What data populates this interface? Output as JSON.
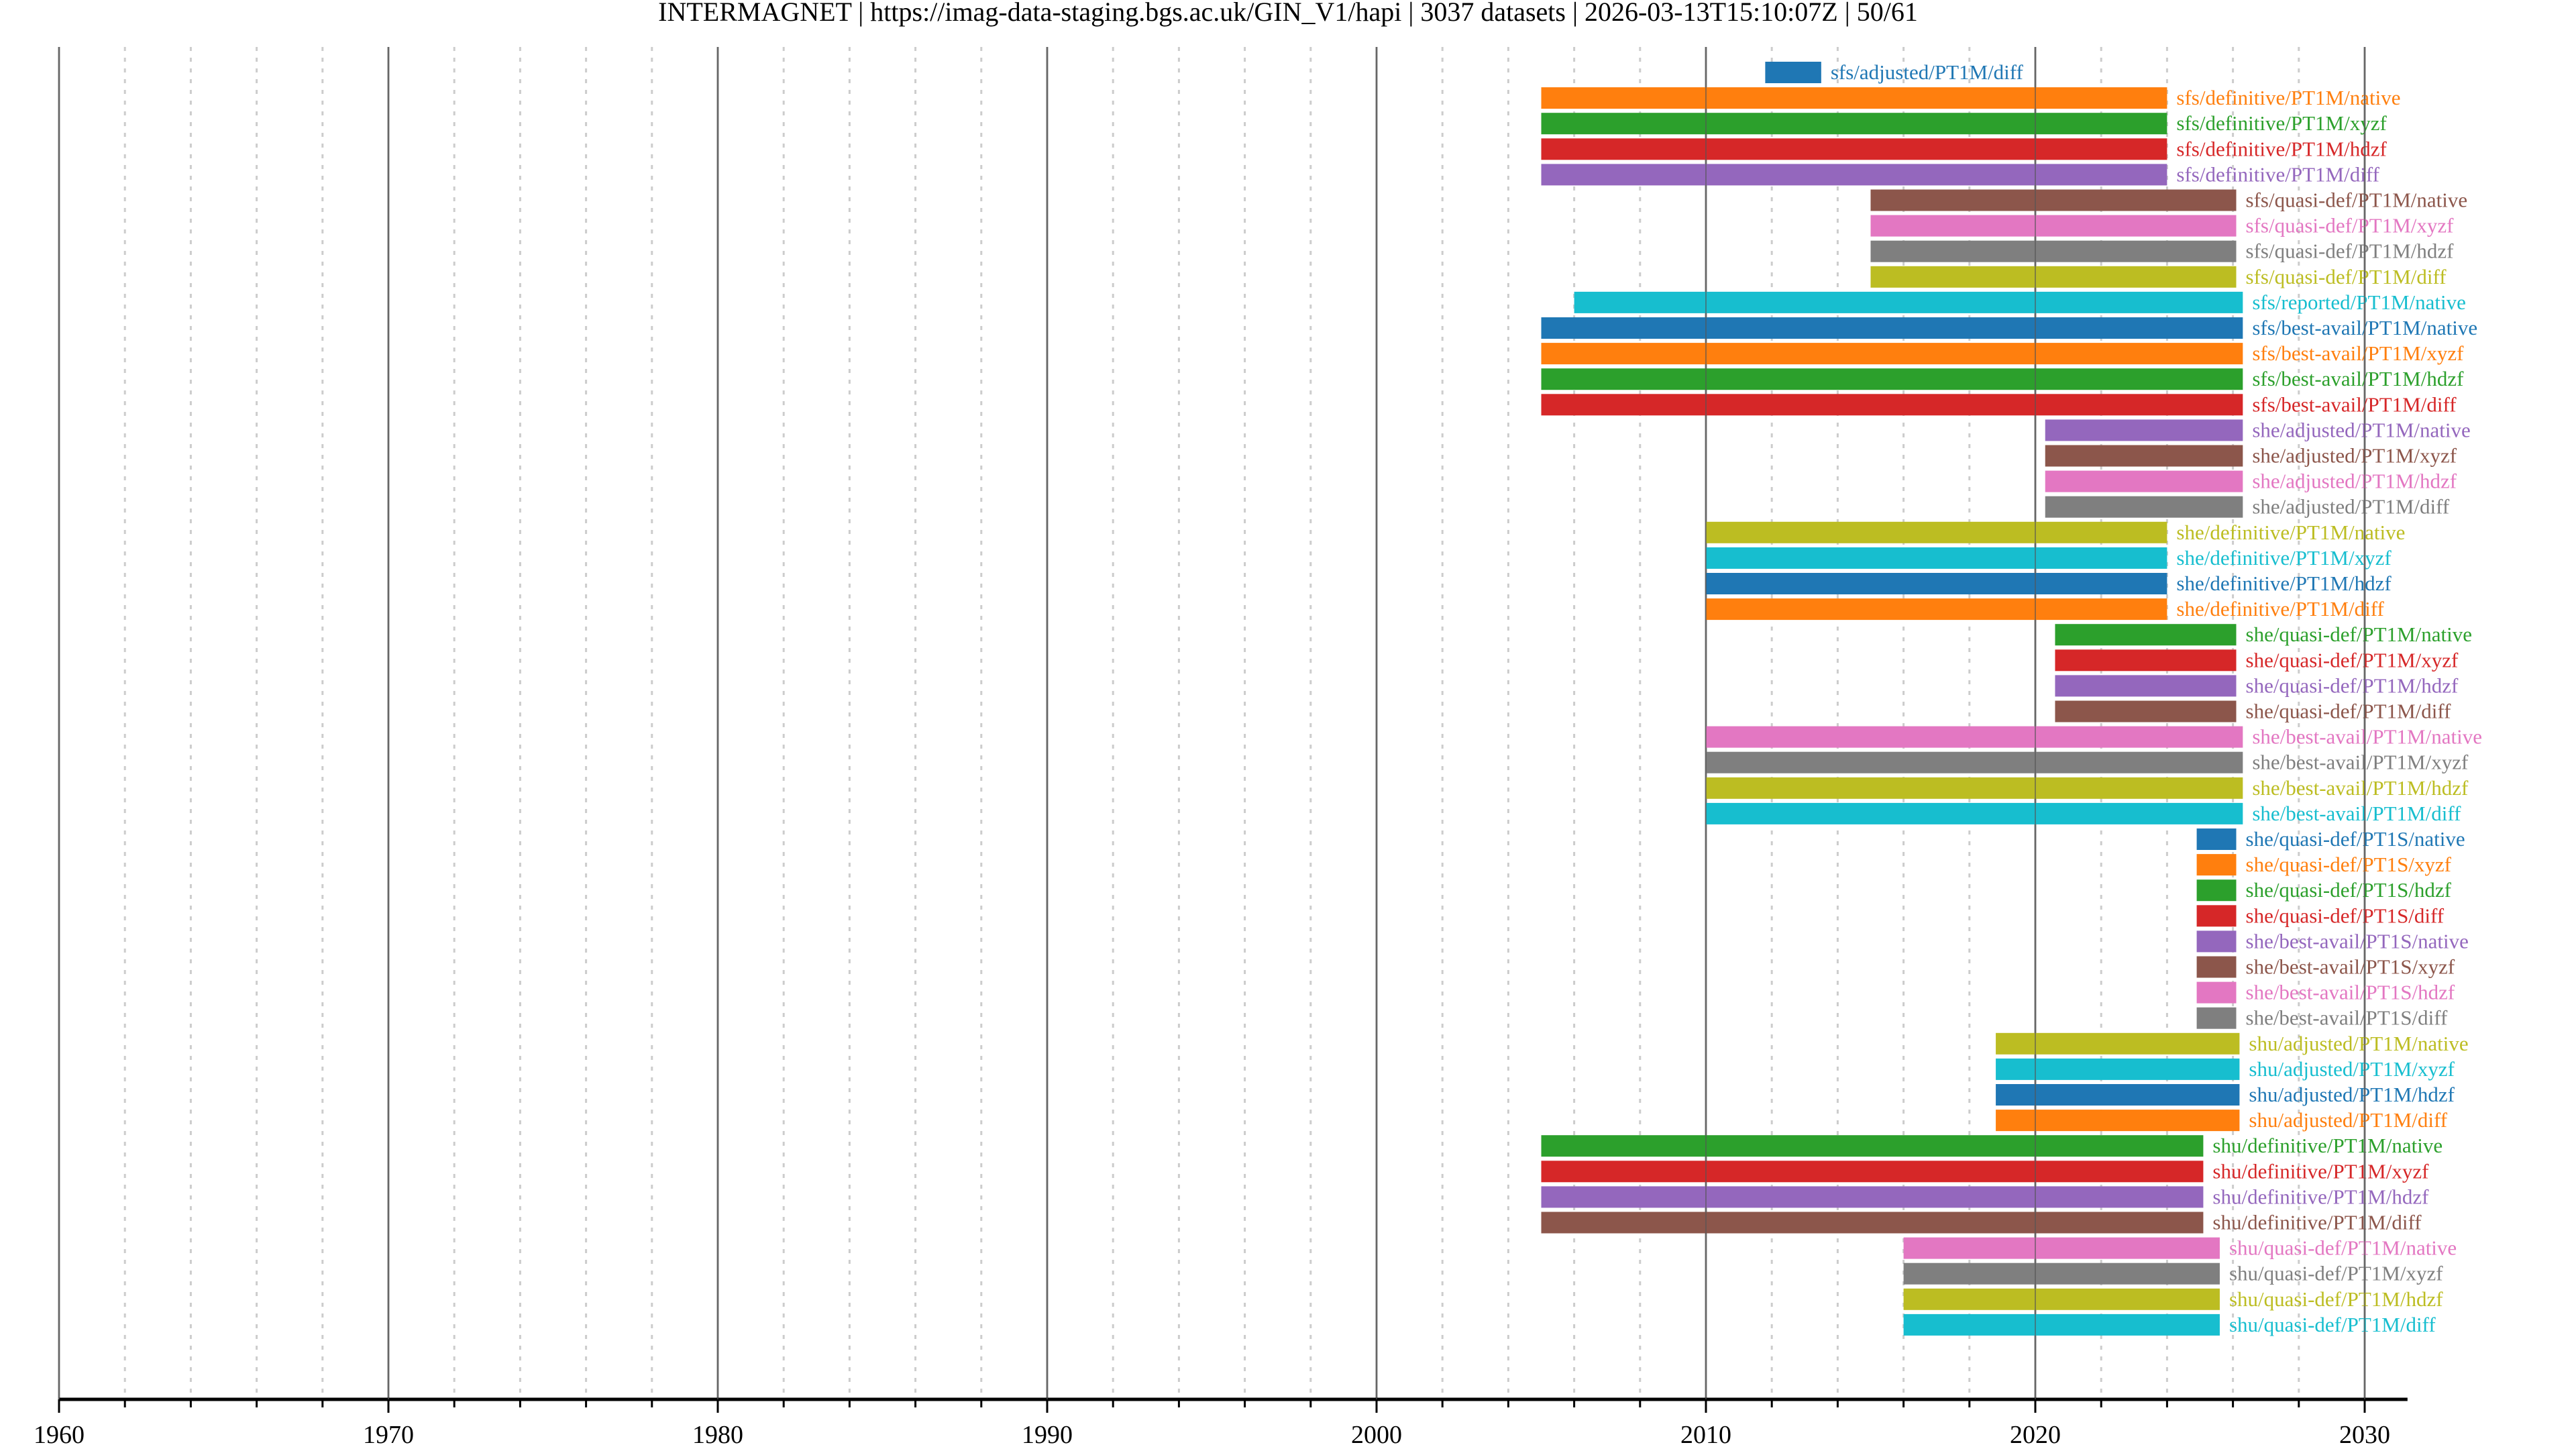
{
  "chart_data": {
    "type": "timeline",
    "title": "INTERMAGNET | https://imag-data-staging.bgs.ac.uk/GIN_V1/hapi | 3037 datasets | 2026-03-13T15:10:07Z | 50/61",
    "xlabel": "",
    "ylabel": "",
    "xlim": [
      1960,
      2031.3
    ],
    "x_ticks": [
      "1960",
      "1970",
      "1980",
      "1990",
      "2000",
      "2010",
      "2020",
      "2030"
    ],
    "grid": {
      "major_every_years": 10,
      "minor_every_years": 2
    },
    "palette": [
      "#1f77b4",
      "#ff7f0e",
      "#2ca02c",
      "#d62728",
      "#9467bd",
      "#8c564b",
      "#e377c2",
      "#7f7f7f",
      "#bcbd22",
      "#17becf"
    ],
    "datasets": [
      {
        "label": "sfs/adjusted/PT1M/diff",
        "start": 2011.8,
        "end": 2013.5
      },
      {
        "label": "sfs/definitive/PT1M/native",
        "start": 2005.0,
        "end": 2024.0
      },
      {
        "label": "sfs/definitive/PT1M/xyzf",
        "start": 2005.0,
        "end": 2024.0
      },
      {
        "label": "sfs/definitive/PT1M/hdzf",
        "start": 2005.0,
        "end": 2024.0
      },
      {
        "label": "sfs/definitive/PT1M/diff",
        "start": 2005.0,
        "end": 2024.0
      },
      {
        "label": "sfs/quasi-def/PT1M/native",
        "start": 2015.0,
        "end": 2026.1
      },
      {
        "label": "sfs/quasi-def/PT1M/xyzf",
        "start": 2015.0,
        "end": 2026.1
      },
      {
        "label": "sfs/quasi-def/PT1M/hdzf",
        "start": 2015.0,
        "end": 2026.1
      },
      {
        "label": "sfs/quasi-def/PT1M/diff",
        "start": 2015.0,
        "end": 2026.1
      },
      {
        "label": "sfs/reported/PT1M/native",
        "start": 2006.0,
        "end": 2026.3
      },
      {
        "label": "sfs/best-avail/PT1M/native",
        "start": 2005.0,
        "end": 2026.3
      },
      {
        "label": "sfs/best-avail/PT1M/xyzf",
        "start": 2005.0,
        "end": 2026.3
      },
      {
        "label": "sfs/best-avail/PT1M/hdzf",
        "start": 2005.0,
        "end": 2026.3
      },
      {
        "label": "sfs/best-avail/PT1M/diff",
        "start": 2005.0,
        "end": 2026.3
      },
      {
        "label": "she/adjusted/PT1M/native",
        "start": 2020.3,
        "end": 2026.3
      },
      {
        "label": "she/adjusted/PT1M/xyzf",
        "start": 2020.3,
        "end": 2026.3
      },
      {
        "label": "she/adjusted/PT1M/hdzf",
        "start": 2020.3,
        "end": 2026.3
      },
      {
        "label": "she/adjusted/PT1M/diff",
        "start": 2020.3,
        "end": 2026.3
      },
      {
        "label": "she/definitive/PT1M/native",
        "start": 2010.0,
        "end": 2024.0
      },
      {
        "label": "she/definitive/PT1M/xyzf",
        "start": 2010.0,
        "end": 2024.0
      },
      {
        "label": "she/definitive/PT1M/hdzf",
        "start": 2010.0,
        "end": 2024.0
      },
      {
        "label": "she/definitive/PT1M/diff",
        "start": 2010.0,
        "end": 2024.0
      },
      {
        "label": "she/quasi-def/PT1M/native",
        "start": 2020.6,
        "end": 2026.1
      },
      {
        "label": "she/quasi-def/PT1M/xyzf",
        "start": 2020.6,
        "end": 2026.1
      },
      {
        "label": "she/quasi-def/PT1M/hdzf",
        "start": 2020.6,
        "end": 2026.1
      },
      {
        "label": "she/quasi-def/PT1M/diff",
        "start": 2020.6,
        "end": 2026.1
      },
      {
        "label": "she/best-avail/PT1M/native",
        "start": 2010.0,
        "end": 2026.3
      },
      {
        "label": "she/best-avail/PT1M/xyzf",
        "start": 2010.0,
        "end": 2026.3
      },
      {
        "label": "she/best-avail/PT1M/hdzf",
        "start": 2010.0,
        "end": 2026.3
      },
      {
        "label": "she/best-avail/PT1M/diff",
        "start": 2010.0,
        "end": 2026.3
      },
      {
        "label": "she/quasi-def/PT1S/native",
        "start": 2024.9,
        "end": 2026.1
      },
      {
        "label": "she/quasi-def/PT1S/xyzf",
        "start": 2024.9,
        "end": 2026.1
      },
      {
        "label": "she/quasi-def/PT1S/hdzf",
        "start": 2024.9,
        "end": 2026.1
      },
      {
        "label": "she/quasi-def/PT1S/diff",
        "start": 2024.9,
        "end": 2026.1
      },
      {
        "label": "she/best-avail/PT1S/native",
        "start": 2024.9,
        "end": 2026.1
      },
      {
        "label": "she/best-avail/PT1S/xyzf",
        "start": 2024.9,
        "end": 2026.1
      },
      {
        "label": "she/best-avail/PT1S/hdzf",
        "start": 2024.9,
        "end": 2026.1
      },
      {
        "label": "she/best-avail/PT1S/diff",
        "start": 2024.9,
        "end": 2026.1
      },
      {
        "label": "shu/adjusted/PT1M/native",
        "start": 2018.8,
        "end": 2026.2
      },
      {
        "label": "shu/adjusted/PT1M/xyzf",
        "start": 2018.8,
        "end": 2026.2
      },
      {
        "label": "shu/adjusted/PT1M/hdzf",
        "start": 2018.8,
        "end": 2026.2
      },
      {
        "label": "shu/adjusted/PT1M/diff",
        "start": 2018.8,
        "end": 2026.2
      },
      {
        "label": "shu/definitive/PT1M/native",
        "start": 2005.0,
        "end": 2025.1
      },
      {
        "label": "shu/definitive/PT1M/xyzf",
        "start": 2005.0,
        "end": 2025.1
      },
      {
        "label": "shu/definitive/PT1M/hdzf",
        "start": 2005.0,
        "end": 2025.1
      },
      {
        "label": "shu/definitive/PT1M/diff",
        "start": 2005.0,
        "end": 2025.1
      },
      {
        "label": "shu/quasi-def/PT1M/native",
        "start": 2016.0,
        "end": 2025.6
      },
      {
        "label": "shu/quasi-def/PT1M/xyzf",
        "start": 2016.0,
        "end": 2025.6
      },
      {
        "label": "shu/quasi-def/PT1M/hdzf",
        "start": 2016.0,
        "end": 2025.6
      },
      {
        "label": "shu/quasi-def/PT1M/diff",
        "start": 2016.0,
        "end": 2025.6
      }
    ]
  }
}
